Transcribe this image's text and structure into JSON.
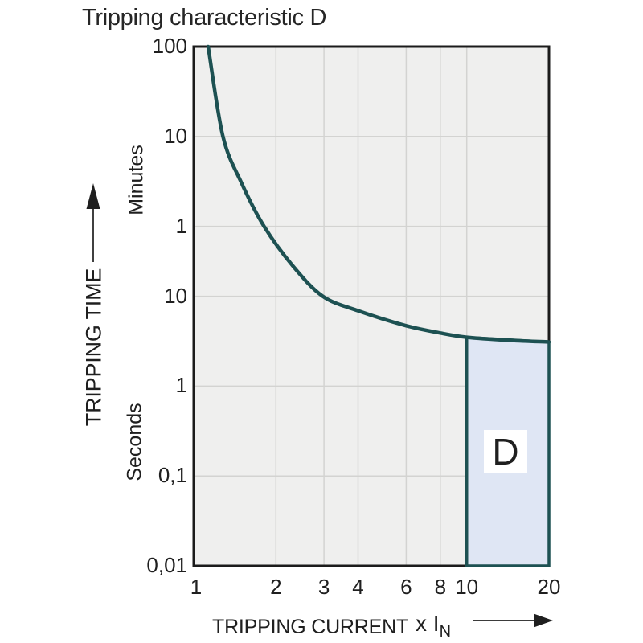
{
  "title": "Tripping characteristic D",
  "axes": {
    "y": {
      "label": "TRIPPING TIME",
      "unit_top": "Minutes",
      "unit_bottom": "Seconds",
      "ticks": [
        {
          "label": "100",
          "seconds": 6000
        },
        {
          "label": "10",
          "seconds": 600
        },
        {
          "label": "1",
          "seconds": 60
        },
        {
          "label": "10",
          "seconds": 10
        },
        {
          "label": "1",
          "seconds": 1
        },
        {
          "label": "0,1",
          "seconds": 0.1
        },
        {
          "label": "0,01",
          "seconds": 0.01
        }
      ]
    },
    "x": {
      "label": "TRIPPING CURRENT",
      "unit": "x I",
      "unit_sub": "N",
      "ticks": [
        {
          "label": "1",
          "multiple": 1
        },
        {
          "label": "2",
          "multiple": 2
        },
        {
          "label": "3",
          "multiple": 3
        },
        {
          "label": "4",
          "multiple": 4
        },
        {
          "label": "6",
          "multiple": 6
        },
        {
          "label": "8",
          "multiple": 8
        },
        {
          "label": "10",
          "multiple": 10
        },
        {
          "label": "20",
          "multiple": 20
        }
      ]
    }
  },
  "region": {
    "label": "D"
  },
  "chart_data": {
    "type": "line",
    "title": "Tripping characteristic D",
    "xlabel": "TRIPPING CURRENT x IN",
    "ylabel": "TRIPPING TIME",
    "x_scale": "log",
    "y_scale": "log",
    "x_range_multiples": [
      1,
      20
    ],
    "y_range_seconds": [
      0.01,
      6000
    ],
    "x_tick_multiples": [
      1,
      2,
      3,
      4,
      6,
      8,
      10,
      20
    ],
    "x_gridline_multiples": [
      2,
      3,
      4,
      6,
      8,
      10
    ],
    "y_tick_seconds": [
      6000,
      600,
      60,
      10,
      1,
      0.1,
      0.01
    ],
    "y_tick_labels": [
      "100",
      "10",
      "1",
      "10",
      "1",
      "0,1",
      "0,01"
    ],
    "y_gridline_seconds": [
      600,
      60,
      10,
      1,
      0.1
    ],
    "grid": true,
    "series": [
      {
        "name": "D characteristic thermal tripping curve",
        "points_multiple_vs_seconds": [
          [
            1.13,
            6000
          ],
          [
            1.28,
            600
          ],
          [
            1.5,
            180
          ],
          [
            1.81,
            60
          ],
          [
            2.3,
            22
          ],
          [
            2.97,
            10
          ],
          [
            4.0,
            6.9
          ],
          [
            6.0,
            4.7
          ],
          [
            8.0,
            3.9
          ],
          [
            10.0,
            3.5
          ],
          [
            14.0,
            3.25
          ],
          [
            20.0,
            3.1
          ]
        ]
      }
    ],
    "region": {
      "label": "D",
      "x_multiples": [
        10,
        20
      ],
      "time_s_top": [
        3.5,
        3.1
      ],
      "time_s_bottom": 0.01
    }
  },
  "colors": {
    "curve": "#1d5152",
    "region_fill": "#dfe6f4",
    "region_border": "#1d5152",
    "plot_bg": "#efefee",
    "gridline": "#d3d3d1",
    "plot_border": "#1b1b1b",
    "arrow": "#1f1f1f",
    "text": "#1f1f1f",
    "page_bg": "#ffffff"
  }
}
